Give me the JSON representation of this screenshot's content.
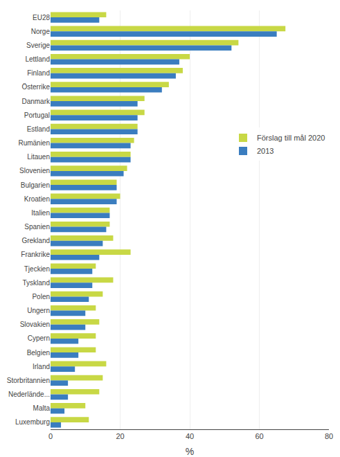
{
  "chart_data": {
    "type": "bar",
    "orientation": "horizontal",
    "categories": [
      "EU28",
      "Norge",
      "Sverige",
      "Lettland",
      "Finland",
      "Österrike",
      "Danmark",
      "Portugal",
      "Estland",
      "Rumänien",
      "Litauen",
      "Slovenien",
      "Bulgarien",
      "Kroatien",
      "Italien",
      "Spanien",
      "Grekland",
      "Frankrike",
      "Tjeckien",
      "Tyskland",
      "Polen",
      "Ungern",
      "Slovakien",
      "Cypern",
      "Belgien",
      "Irland",
      "Storbritannien",
      "Nederlände...",
      "Malta",
      "Luxemburg"
    ],
    "series": [
      {
        "name": "Förslag till mål 2020",
        "color": "#c8d845",
        "values": [
          16,
          67.5,
          54,
          40,
          38,
          34,
          27,
          27,
          25,
          24,
          23,
          22,
          19,
          20,
          17,
          17,
          18,
          23,
          13,
          18,
          15,
          13,
          14,
          13,
          13,
          16,
          15,
          14,
          10,
          11
        ]
      },
      {
        "name": "2013",
        "color": "#3a7dbf",
        "values": [
          14,
          65,
          52,
          37,
          36,
          32,
          25,
          25,
          25,
          23,
          23,
          21,
          19,
          19,
          17,
          16,
          15,
          14,
          12,
          12,
          11,
          10,
          10,
          8,
          8,
          7,
          5,
          5,
          4,
          3
        ]
      }
    ],
    "xlabel": "%",
    "xlim": [
      0,
      80
    ],
    "xticks": [
      0,
      20,
      40,
      60,
      80
    ],
    "grid": true,
    "legend": "upper right"
  }
}
